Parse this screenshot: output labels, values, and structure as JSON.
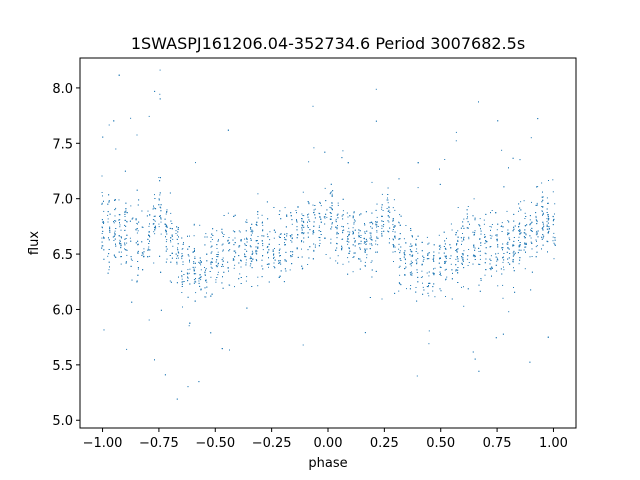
{
  "chart_data": {
    "type": "scatter",
    "title": "1SWASPJ161206.04-352734.6 Period 3007682.5s",
    "xlabel": "phase",
    "ylabel": "flux",
    "xlim": [
      -1.1,
      1.1
    ],
    "ylim": [
      4.93,
      8.27
    ],
    "x_ticks": [
      -1.0,
      -0.75,
      -0.5,
      -0.25,
      0.0,
      0.25,
      0.5,
      0.75,
      1.0
    ],
    "x_tick_labels": [
      "−1.00",
      "−0.75",
      "−0.50",
      "−0.25",
      "0.00",
      "0.25",
      "0.50",
      "0.75",
      "1.00"
    ],
    "y_ticks": [
      5.0,
      5.5,
      6.0,
      6.5,
      7.0,
      7.5,
      8.0
    ],
    "y_tick_labels": [
      "5.0",
      "5.5",
      "6.0",
      "6.5",
      "7.0",
      "7.5",
      "8.0"
    ],
    "grid": false,
    "series": [
      {
        "color": "#1f77b4",
        "marker": "point",
        "approx_profile": {
          "phase": [
            -1.0,
            -0.95,
            -0.9,
            -0.85,
            -0.8,
            -0.78,
            -0.75,
            -0.7,
            -0.65,
            -0.6,
            -0.55,
            -0.5,
            -0.45,
            -0.4,
            -0.35,
            -0.3,
            -0.25,
            -0.2,
            -0.15,
            -0.1,
            -0.05,
            0.0,
            0.05,
            0.1,
            0.15,
            0.2,
            0.22,
            0.25,
            0.3,
            0.35,
            0.4,
            0.45,
            0.5,
            0.55,
            0.6,
            0.65,
            0.7,
            0.75,
            0.8,
            0.85,
            0.9,
            0.95,
            1.0
          ],
          "flux": [
            6.8,
            6.7,
            6.65,
            6.62,
            6.6,
            6.75,
            6.9,
            6.6,
            6.45,
            6.4,
            6.4,
            6.45,
            6.5,
            6.55,
            6.6,
            6.6,
            6.6,
            6.6,
            6.65,
            6.75,
            6.8,
            6.8,
            6.7,
            6.65,
            6.62,
            6.6,
            6.75,
            6.9,
            6.6,
            6.45,
            6.4,
            6.4,
            6.45,
            6.5,
            6.55,
            6.6,
            6.6,
            6.6,
            6.6,
            6.65,
            6.75,
            6.8,
            6.8
          ]
        }
      }
    ]
  }
}
